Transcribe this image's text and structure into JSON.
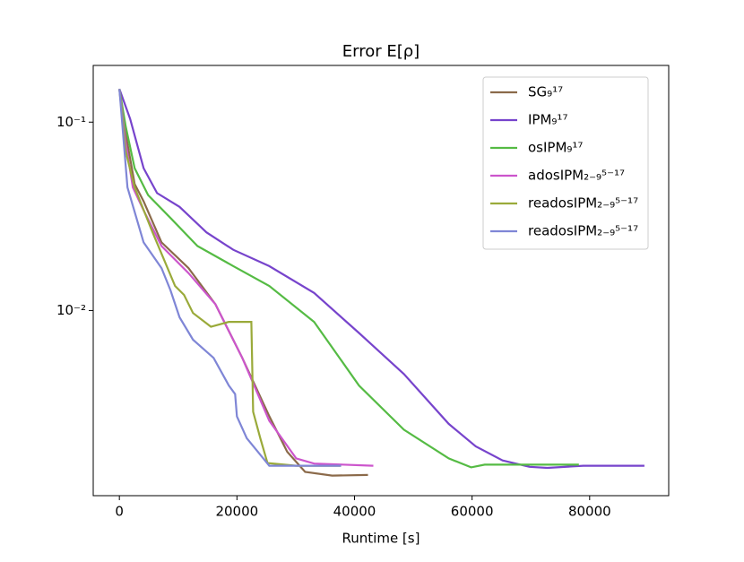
{
  "chart_data": {
    "type": "line",
    "title": "Error E[ρ]",
    "x_label": "Runtime [s]",
    "xlim": [
      -4450,
      93450
    ],
    "xticks": [
      0,
      20000,
      40000,
      60000,
      80000
    ],
    "ylim": [
      0.00104,
      0.2
    ],
    "y_log": true,
    "yticks": [
      {
        "value": 0.1,
        "label": "10⁻¹"
      },
      {
        "value": 0.01,
        "label": "10⁻²"
      }
    ],
    "legend": "upper right",
    "series": [
      {
        "name": "SG₉¹⁷",
        "color": "#8b6a4a",
        "x": [
          0,
          1069,
          2595,
          4122,
          7175,
          11756,
          16336,
          20916,
          25496,
          28550,
          31603,
          36183,
          42290
        ],
        "values": [
          0.15,
          0.087,
          0.047,
          0.038,
          0.023,
          0.0168,
          0.0108,
          0.0056,
          0.00275,
          0.00178,
          0.00139,
          0.00133,
          0.00134
        ]
      },
      {
        "name": "IPM₉¹⁷",
        "color": "#7744cc",
        "x": [
          0,
          1832,
          4122,
          6412,
          10229,
          14809,
          19389,
          25496,
          33130,
          40763,
          48397,
          56030,
          60611,
          65191,
          69771,
          72824,
          78931,
          89313
        ],
        "values": [
          0.15,
          0.104,
          0.057,
          0.042,
          0.0355,
          0.026,
          0.021,
          0.0172,
          0.0124,
          0.0076,
          0.0046,
          0.0025,
          0.0019,
          0.0016,
          0.00148,
          0.00146,
          0.0015,
          0.0015
        ]
      },
      {
        "name": "osIPM₉¹⁷",
        "color": "#55bb44",
        "x": [
          0,
          1069,
          2595,
          4885,
          8702,
          13282,
          19389,
          25496,
          33130,
          40763,
          48397,
          56030,
          59847,
          62137,
          71298,
          78168
        ],
        "values": [
          0.15,
          0.095,
          0.057,
          0.041,
          0.031,
          0.022,
          0.0172,
          0.0135,
          0.0087,
          0.004,
          0.00233,
          0.00164,
          0.00147,
          0.00152,
          0.00152,
          0.00152
        ]
      },
      {
        "name": "adosIPM₂₋₉⁵⁻¹⁷",
        "color": "#cc55cc",
        "x": [
          0,
          1069,
          2290,
          4122,
          7175,
          11756,
          16336,
          20916,
          25496,
          30076,
          33130,
          43206
        ],
        "values": [
          0.15,
          0.078,
          0.045,
          0.034,
          0.022,
          0.0158,
          0.0108,
          0.0056,
          0.0026,
          0.00164,
          0.00154,
          0.0015
        ]
      },
      {
        "name": "readosIPM₂₋₉⁵⁻¹⁷",
        "color": "#9aaa3a",
        "x": [
          0,
          1069,
          2595,
          5649,
          9465,
          10992,
          12519,
          15572,
          18626,
          22443,
          22748,
          23969,
          25191,
          30076,
          37710
        ],
        "values": [
          0.15,
          0.07,
          0.045,
          0.026,
          0.0135,
          0.0121,
          0.0097,
          0.0082,
          0.0087,
          0.0087,
          0.0029,
          0.0021,
          0.00155,
          0.0015,
          0.0015
        ]
      },
      {
        "name": "readosIPM₂₋₉⁵⁻¹⁷",
        "color": "#7f86d6",
        "x": [
          0,
          1374,
          4122,
          7175,
          8702,
          10229,
          12519,
          16031,
          18626,
          19694,
          19999,
          21679,
          25496,
          37710
        ],
        "values": [
          0.15,
          0.045,
          0.023,
          0.0168,
          0.0128,
          0.0092,
          0.007,
          0.0056,
          0.004,
          0.0036,
          0.00274,
          0.0021,
          0.0015,
          0.0015
        ]
      }
    ]
  }
}
